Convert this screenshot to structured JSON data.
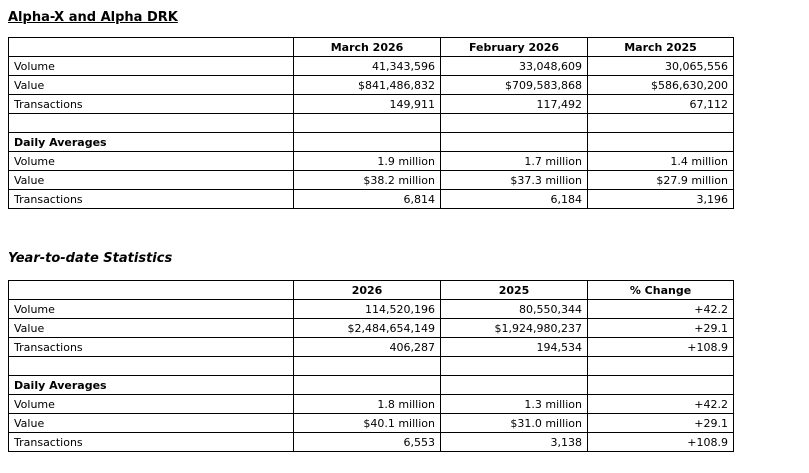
{
  "page": {
    "background_color": "#ffffff",
    "border_color": "#000000",
    "text_color": "#000000"
  },
  "monthly": {
    "title": "Alpha-X and Alpha DRK",
    "columns": [
      "March 2026",
      "February 2026",
      "March 2025"
    ],
    "rows": [
      {
        "label": "Volume",
        "values": [
          "41,343,596",
          "33,048,609",
          "30,065,556"
        ],
        "style": "data"
      },
      {
        "label": "Value",
        "values": [
          "$841,486,832",
          "$709,583,868",
          "$586,630,200"
        ],
        "style": "data"
      },
      {
        "label": "Transactions",
        "values": [
          "149,911",
          "117,492",
          "67,112"
        ],
        "style": "data"
      },
      {
        "label": "",
        "values": [
          "",
          "",
          ""
        ],
        "style": "blank"
      },
      {
        "label": "Daily Averages",
        "values": [
          "",
          "",
          ""
        ],
        "style": "section"
      },
      {
        "label": "Volume",
        "values": [
          "1.9 million",
          "1.7 million",
          "1.4 million"
        ],
        "style": "data"
      },
      {
        "label": "Value",
        "values": [
          "$38.2 million",
          "$37.3 million",
          "$27.9 million"
        ],
        "style": "data"
      },
      {
        "label": "Transactions",
        "values": [
          "6,814",
          "6,184",
          "3,196"
        ],
        "style": "data"
      }
    ]
  },
  "ytd": {
    "title": "Year-to-date Statistics",
    "columns": [
      "2026",
      "2025",
      "% Change"
    ],
    "rows": [
      {
        "label": "Volume",
        "values": [
          "114,520,196",
          "80,550,344",
          "+42.2"
        ],
        "style": "data"
      },
      {
        "label": "Value",
        "values": [
          "$2,484,654,149",
          "$1,924,980,237",
          "+29.1"
        ],
        "style": "data"
      },
      {
        "label": "Transactions",
        "values": [
          "406,287",
          "194,534",
          "+108.9"
        ],
        "style": "data"
      },
      {
        "label": "",
        "values": [
          "",
          "",
          ""
        ],
        "style": "blank"
      },
      {
        "label": "Daily Averages",
        "values": [
          "",
          "",
          ""
        ],
        "style": "section"
      },
      {
        "label": "Volume",
        "values": [
          "1.8 million",
          "1.3 million",
          "+42.2"
        ],
        "style": "data"
      },
      {
        "label": "Value",
        "values": [
          "$40.1 million",
          "$31.0 million",
          "+29.1"
        ],
        "style": "data"
      },
      {
        "label": "Transactions",
        "values": [
          "6,553",
          "3,138",
          "+108.9"
        ],
        "style": "data"
      }
    ]
  }
}
